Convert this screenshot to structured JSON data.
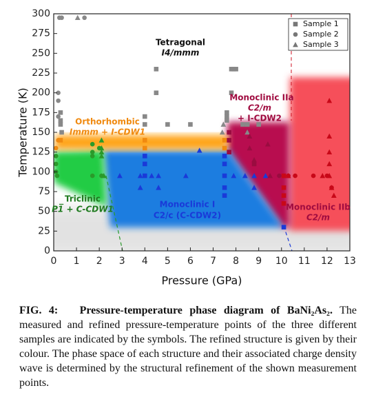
{
  "chart_data": {
    "type": "scatter",
    "x_label": "Pressure (GPa)",
    "y_label": "Temperature (K)",
    "xlim": [
      0,
      13
    ],
    "xticks": [
      0,
      1,
      2,
      3,
      4,
      5,
      6,
      7,
      8,
      9,
      10,
      11,
      12,
      13
    ],
    "ylim": [
      0,
      300
    ],
    "yticks": [
      0,
      25,
      50,
      75,
      100,
      125,
      150,
      175,
      200,
      225,
      250,
      275,
      300
    ],
    "legend": "upper right",
    "annotations": [
      "Tetragonal",
      "I4/mmm",
      "Orthorhombic",
      "Immm + I-CDW1",
      "Monoclinic IIa",
      "C2/m",
      "+ I-CDW2",
      "Triclinic",
      "P1̅ + C-CDW1",
      "Monoclinic I",
      "C2/c  (C-CDW2)",
      "Monoclinic IIb",
      "C2/m"
    ],
    "series": [
      {
        "name": "Sample 1",
        "marker": "square",
        "color": "#777777",
        "x": [
          0.3,
          0.3,
          0.3,
          0.35,
          4.0,
          4.0,
          4.5,
          4.5,
          5.0,
          6.0,
          7.6,
          7.6,
          7.6,
          7.8,
          7.9,
          8.0,
          7.8,
          8.3,
          8.5,
          9.0,
          0.3,
          4.0,
          4.0,
          7.5,
          7.5,
          4.0,
          4.0,
          4.0,
          7.5,
          7.5,
          7.5,
          7.5,
          7.5,
          10.1,
          7.7,
          7.7,
          7.7,
          8.8,
          10.1,
          10.1,
          10.1,
          10.1
        ],
        "y": [
          175,
          165,
          160,
          150,
          170,
          160,
          230,
          200,
          160,
          160,
          175,
          170,
          165,
          230,
          230,
          230,
          200,
          160,
          160,
          160,
          140,
          140,
          130,
          140,
          130,
          120,
          110,
          95,
          120,
          110,
          95,
          80,
          70,
          30,
          150,
          140,
          125,
          110,
          95,
          80,
          70,
          60
        ],
        "colors": [
          "#888",
          "#888",
          "#888",
          "#888",
          "#888",
          "#888",
          "#888",
          "#888",
          "#888",
          "#888",
          "#888",
          "#888",
          "#888",
          "#888",
          "#888",
          "#888",
          "#888",
          "#888",
          "#888",
          "#888",
          "#f08a10",
          "#f08a10",
          "#f08a10",
          "#f08a10",
          "#f08a10",
          "#1a3ad8",
          "#1a3ad8",
          "#1a3ad8",
          "#1a3ad8",
          "#1a3ad8",
          "#1a3ad8",
          "#1a3ad8",
          "#1a3ad8",
          "#1a3ad8",
          "#9a0c40",
          "#9a0c40",
          "#9a0c40",
          "#9a0c40",
          "#c80818",
          "#c80818",
          "#c80818",
          "#c80818"
        ]
      },
      {
        "name": "Sample 2",
        "marker": "circle",
        "color": "#777777",
        "x": [
          0.25,
          0.35,
          1.35,
          0.2,
          0.2,
          0.2,
          0.2,
          0.1,
          0.1,
          0.1,
          0.1,
          0.15,
          1.7,
          1.7,
          1.7,
          2.0,
          2.1,
          1.7,
          9.9,
          10.3,
          10.6,
          11.4,
          12.0,
          12.2
        ],
        "y": [
          295,
          295,
          295,
          200,
          190,
          170,
          140,
          130,
          120,
          110,
          100,
          95,
          135,
          125,
          120,
          130,
          95,
          95,
          95,
          95,
          95,
          95,
          95,
          80
        ],
        "colors": [
          "#888",
          "#888",
          "#888",
          "#888",
          "#888",
          "#888",
          "#f08a10",
          "#f08a10",
          "#2a9a2a",
          "#2a9a2a",
          "#2a9a2a",
          "#2a9a2a",
          "#2a9a2a",
          "#2a9a2a",
          "#2a9a2a",
          "#2a9a2a",
          "#2a9a2a",
          "#2a9a2a",
          "#9a0c40",
          "#c80818",
          "#c80818",
          "#c80818",
          "#c80818",
          "#c80818"
        ]
      },
      {
        "name": "Sample 3",
        "marker": "triangle",
        "color": "#777777",
        "x": [
          1.05,
          7.4,
          7.45,
          8.5,
          2.1,
          2.1,
          2.1,
          2.1,
          2.2,
          2.9,
          3.8,
          3.8,
          4.3,
          4.6,
          4.6,
          5.8,
          6.4,
          7.9,
          8.4,
          8.8,
          8.8,
          9.3,
          8.6,
          8.6,
          8.8,
          9.4,
          9.5,
          10.3,
          11.8,
          12.1,
          12.1,
          12.1,
          12.1,
          12.1,
          12.2,
          12.3
        ],
        "y": [
          295,
          150,
          160,
          150,
          140,
          130,
          125,
          120,
          95,
          95,
          95,
          80,
          95,
          95,
          80,
          95,
          127,
          95,
          95,
          95,
          80,
          95,
          145,
          130,
          115,
          135,
          95,
          95,
          95,
          190,
          145,
          125,
          110,
          95,
          80,
          70
        ],
        "colors": [
          "#888",
          "#888",
          "#888",
          "#888",
          "#2a9a2a",
          "#2a9a2a",
          "#2a9a2a",
          "#2a9a2a",
          "#2a9a2a",
          "#1a3ad8",
          "#1a3ad8",
          "#1a3ad8",
          "#1a3ad8",
          "#1a3ad8",
          "#1a3ad8",
          "#1a3ad8",
          "#1a3ad8",
          "#1a3ad8",
          "#1a3ad8",
          "#1a3ad8",
          "#1a3ad8",
          "#1a3ad8",
          "#9a0c40",
          "#9a0c40",
          "#9a0c40",
          "#9a0c40",
          "#9a0c40",
          "#c80818",
          "#c80818",
          "#c80818",
          "#c80818",
          "#c80818",
          "#c80818",
          "#c80818",
          "#c80818",
          "#c80818"
        ]
      }
    ]
  },
  "caption": {
    "label": "FIG. 4:",
    "title": "Pressure-temperature phase diagram of BaNi₂As₂.",
    "text": "The measured and refined pressure-temperature points of the three different samples are indicated by the symbols. The refined structure is given by their colour. The phase space of each structure and their associated charge density wave is determined by the structural refinement of the shown measurement points."
  }
}
